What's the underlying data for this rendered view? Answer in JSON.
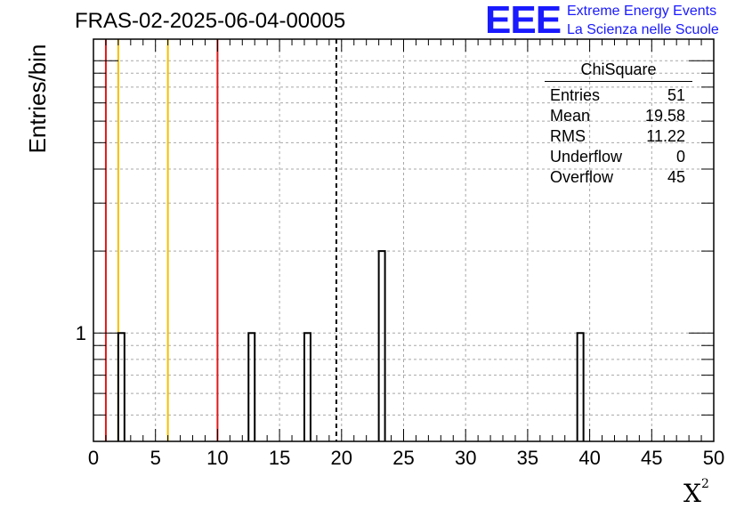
{
  "title": "FRAS-02-2025-06-04-00005",
  "logo": {
    "letters": "EEE",
    "line1": "Extreme Energy Events",
    "line2": "La Scienza nelle Scuole",
    "color": "#1a1aff"
  },
  "chart_data": {
    "type": "bar",
    "title": "FRAS-02-2025-06-04-00005",
    "xlabel": "X",
    "xlabel_superscript": "2",
    "ylabel": "Entries/bin",
    "xlim": [
      0,
      50
    ],
    "ylim": [
      0.4,
      12
    ],
    "log_y": true,
    "grid": true,
    "bin_width": 0.5,
    "x_ticks": [
      0,
      5,
      10,
      15,
      20,
      25,
      30,
      35,
      40,
      45,
      50
    ],
    "x_tick_labels": [
      "0",
      "5",
      "10",
      "15",
      "20",
      "25",
      "30",
      "35",
      "40",
      "45",
      "50"
    ],
    "y_tick_labels": [
      {
        "value": 1,
        "label": "1"
      }
    ],
    "bins": [
      {
        "x0": 2.0,
        "x1": 2.5,
        "count": 1
      },
      {
        "x0": 12.5,
        "x1": 13.0,
        "count": 1
      },
      {
        "x0": 17.0,
        "x1": 17.5,
        "count": 1
      },
      {
        "x0": 23.0,
        "x1": 23.5,
        "count": 2
      },
      {
        "x0": 39.0,
        "x1": 39.5,
        "count": 1
      }
    ],
    "reference_lines": [
      {
        "x": 1.0,
        "color": "#e0191a",
        "style": "solid"
      },
      {
        "x": 2.0,
        "color": "#f5c000",
        "style": "solid"
      },
      {
        "x": 6.0,
        "color": "#f5c000",
        "style": "solid"
      },
      {
        "x": 10.0,
        "color": "#e0191a",
        "style": "solid"
      },
      {
        "x": 19.58,
        "color": "#000000",
        "style": "dashed"
      }
    ],
    "stats": {
      "title": "ChiSquare",
      "rows": [
        {
          "label": "Entries",
          "value": "51"
        },
        {
          "label": "Mean",
          "value": "19.58"
        },
        {
          "label": "RMS",
          "value": "11.22"
        },
        {
          "label": "Underflow",
          "value": "0"
        },
        {
          "label": "Overflow",
          "value": "45"
        }
      ]
    }
  }
}
